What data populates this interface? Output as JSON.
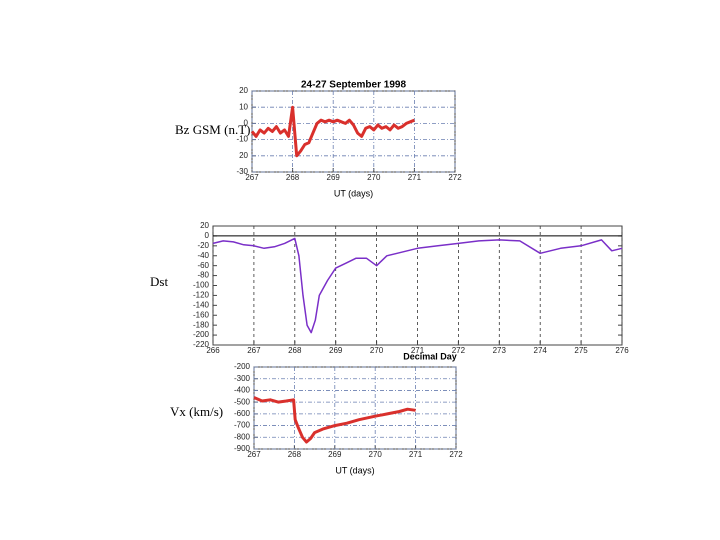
{
  "chart_data": [
    {
      "type": "line",
      "title": "24-27 September 1998",
      "ylabel": "Bz GSM (n.T)",
      "xlabel": "UT (days)",
      "color": "#d9302c",
      "grid": "both",
      "xlim": [
        267,
        272
      ],
      "xticks": [
        267,
        268,
        269,
        270,
        271,
        272
      ],
      "ylim": [
        -30,
        20
      ],
      "yticks": [
        20,
        10,
        0,
        -10,
        {
          "value": -20,
          "label": "20"
        },
        -30
      ],
      "x": [
        267.0,
        267.1,
        267.2,
        267.3,
        267.4,
        267.5,
        267.6,
        267.7,
        267.8,
        267.9,
        268.0,
        268.1,
        268.2,
        268.3,
        268.4,
        268.5,
        268.6,
        268.7,
        268.8,
        268.9,
        269.0,
        269.1,
        269.2,
        269.3,
        269.4,
        269.5,
        269.6,
        269.7,
        269.8,
        269.9,
        270.0,
        270.1,
        270.2,
        270.3,
        270.4,
        270.5,
        270.6,
        270.7,
        270.8,
        270.9,
        271.0
      ],
      "values": [
        -5,
        -8,
        -4,
        -6,
        -3,
        -5,
        -2,
        -6,
        -4,
        -8,
        10,
        -20,
        -17,
        -13,
        -12,
        -6,
        0,
        2,
        1,
        2,
        1,
        2,
        1,
        0,
        2,
        -1,
        -6,
        -8,
        -3,
        -2,
        -4,
        -1,
        -3,
        -2,
        -4,
        -1,
        -3,
        -2,
        0,
        1,
        2
      ]
    },
    {
      "type": "line",
      "ylabel": "Dst",
      "xlabel": "Decimal Day",
      "color": "#7a2fc8",
      "grid": "x",
      "reference_line": 0,
      "xlim": [
        266,
        276
      ],
      "xticks": [
        266,
        267,
        268,
        269,
        270,
        271,
        272,
        273,
        274,
        275,
        276
      ],
      "ylim": [
        -220,
        20
      ],
      "yticks": [
        20,
        0,
        -20,
        -40,
        -60,
        -80,
        -100,
        -120,
        -140,
        -160,
        -180,
        -200,
        -220
      ],
      "x": [
        266,
        266.25,
        266.5,
        266.75,
        267,
        267.25,
        267.5,
        267.75,
        268,
        268.1,
        268.2,
        268.3,
        268.4,
        268.5,
        268.6,
        268.8,
        269,
        269.25,
        269.5,
        269.75,
        270,
        270.25,
        270.5,
        271,
        271.5,
        272,
        272.5,
        273,
        273.5,
        274,
        274.25,
        274.5,
        275,
        275.5,
        275.75,
        276
      ],
      "values": [
        -15,
        -10,
        -12,
        -18,
        -20,
        -25,
        -22,
        -15,
        -5,
        -40,
        -120,
        -180,
        -195,
        -170,
        -120,
        -90,
        -65,
        -55,
        -45,
        -45,
        -60,
        -40,
        -35,
        -25,
        -20,
        -15,
        -10,
        -8,
        -10,
        -35,
        -30,
        -25,
        -20,
        -8,
        -30,
        -25
      ]
    },
    {
      "type": "line",
      "ylabel": "Vx (km/s)",
      "xlabel": "UT (days)",
      "color": "#d9302c",
      "grid": "both",
      "xlim": [
        267,
        272
      ],
      "xticks": [
        267,
        268,
        269,
        270,
        271,
        272
      ],
      "ylim": [
        -900,
        -200
      ],
      "yticks": [
        -200,
        -300,
        -400,
        -500,
        -600,
        -700,
        -800,
        -900
      ],
      "x": [
        267,
        267.2,
        267.4,
        267.6,
        267.8,
        267.98,
        268.02,
        268.1,
        268.2,
        268.3,
        268.4,
        268.5,
        268.7,
        269,
        269.3,
        269.6,
        270,
        270.3,
        270.6,
        270.8,
        271
      ],
      "values": [
        -460,
        -490,
        -480,
        -500,
        -490,
        -480,
        -650,
        -720,
        -800,
        -840,
        -810,
        -760,
        -730,
        -700,
        -680,
        -650,
        -620,
        -600,
        -580,
        -560,
        -570
      ]
    }
  ]
}
